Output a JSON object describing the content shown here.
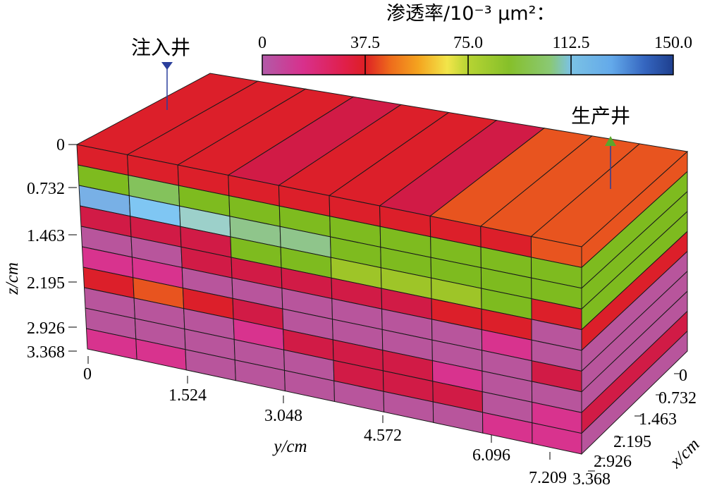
{
  "legend": {
    "title": "渗透率/10⁻³ μm²：",
    "ticks": [
      "0",
      "37.5",
      "75.0",
      "112.5",
      "150.0"
    ],
    "min": 0,
    "max": 150
  },
  "wells": {
    "injector": {
      "label": "注入井",
      "color": "#2b3f9c"
    },
    "producer": {
      "label": "生产井",
      "color": "#5aa62c"
    }
  },
  "axes": {
    "z": {
      "label": "z/cm",
      "ticks": [
        "0",
        "0.732",
        "1.463",
        "2.195",
        "2.926",
        "3.368"
      ]
    },
    "y": {
      "label": "y/cm",
      "ticks": [
        "0",
        "1.524",
        "3.048",
        "4.572",
        "6.096",
        "7.209"
      ]
    },
    "x": {
      "label": "x/cm",
      "ticks": [
        "0",
        "0.732",
        "1.463",
        "2.195",
        "2.926",
        "3.368"
      ]
    }
  },
  "colors": {
    "red": "#dc1f2a",
    "crimson": "#d11b46",
    "orange": "#e8541f",
    "magenta": "#d8338e",
    "mauve": "#b8559c",
    "green": "#7ebb1f",
    "lightgreen": "#84c25c",
    "sage": "#8fc58b",
    "lime": "#9ec528",
    "blue": "#78b0e6",
    "skyblue": "#7fc6f3",
    "teal": "#9cd0ca"
  },
  "front_face": [
    [
      "red",
      "red",
      "red",
      "red",
      "red",
      "red",
      "red",
      "red",
      "red",
      "orange"
    ],
    [
      "green",
      "lightgreen",
      "green",
      "green",
      "green",
      "green",
      "green",
      "green",
      "green",
      "green"
    ],
    [
      "blue",
      "skyblue",
      "teal",
      "sage",
      "sage",
      "green",
      "green",
      "green",
      "green",
      "green"
    ],
    [
      "crimson",
      "crimson",
      "crimson",
      "green",
      "green",
      "lime",
      "lime",
      "lime",
      "green",
      "red"
    ],
    [
      "mauve",
      "mauve",
      "crimson",
      "crimson",
      "crimson",
      "crimson",
      "crimson",
      "red",
      "red",
      "mauve"
    ],
    [
      "magenta",
      "magenta",
      "mauve",
      "mauve",
      "mauve",
      "mauve",
      "mauve",
      "mauve",
      "magenta",
      "mauve"
    ],
    [
      "red",
      "orange",
      "red",
      "crimson",
      "mauve",
      "mauve",
      "mauve",
      "mauve",
      "mauve",
      "crimson"
    ],
    [
      "mauve",
      "mauve",
      "mauve",
      "magenta",
      "crimson",
      "crimson",
      "crimson",
      "magenta",
      "mauve",
      "mauve"
    ],
    [
      "mauve",
      "mauve",
      "mauve",
      "mauve",
      "mauve",
      "crimson",
      "crimson",
      "crimson",
      "mauve",
      "magenta"
    ],
    [
      "magenta",
      "magenta",
      "mauve",
      "mauve",
      "mauve",
      "mauve",
      "mauve",
      "mauve",
      "magenta",
      "magenta"
    ]
  ],
  "top_face": [
    "red",
    "red",
    "red",
    "crimson",
    "red",
    "red",
    "crimson",
    "orange",
    "orange",
    "orange"
  ],
  "side_face": [
    "orange",
    "green",
    "green",
    "green",
    "red",
    "mauve",
    "mauve",
    "mauve",
    "crimson",
    "mauve"
  ]
}
